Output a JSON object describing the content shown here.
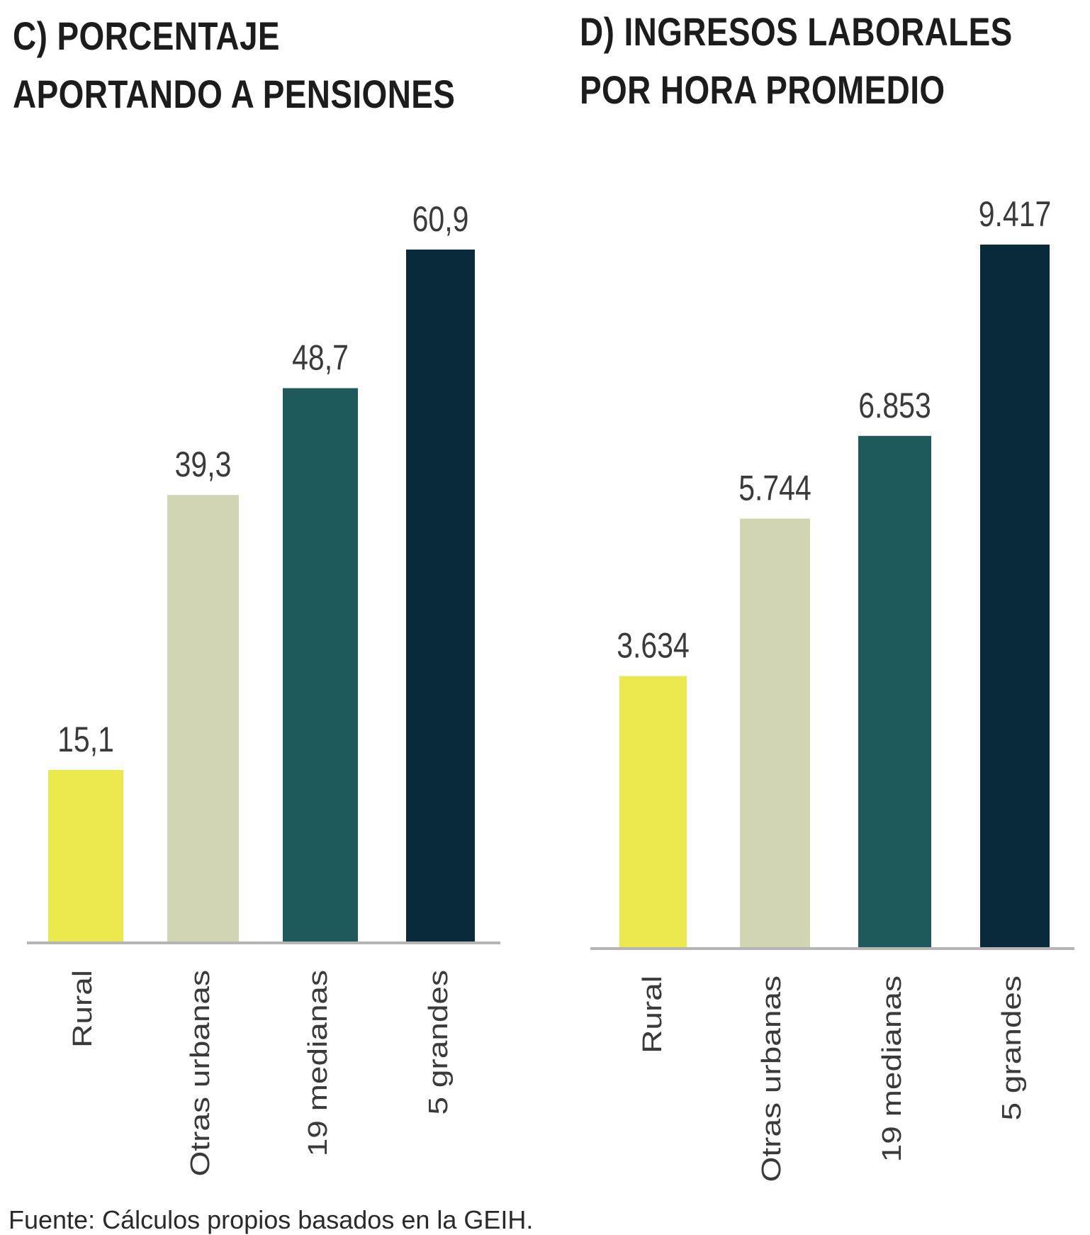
{
  "chart_data": [
    {
      "type": "bar",
      "title_lines": [
        "C) PORCENTAJE",
        "APORTANDO A PENSIONES"
      ],
      "categories": [
        "Rural",
        "Otras urbanas",
        "19 medianas",
        "5 grandes"
      ],
      "values": [
        15.1,
        39.3,
        48.7,
        60.9
      ],
      "value_labels": [
        "15,1",
        "39,3",
        "48,7",
        "60,9"
      ],
      "colors": [
        "#ece94f",
        "#d2d5b2",
        "#1e5a5b",
        "#082a3a"
      ],
      "ylim": [
        0,
        60.9
      ]
    },
    {
      "type": "bar",
      "title_lines": [
        "D) INGRESOS LABORALES",
        "POR HORA PROMEDIO"
      ],
      "categories": [
        "Rural",
        "Otras urbanas",
        "19 medianas",
        "5 grandes"
      ],
      "values": [
        3634,
        5744,
        6853,
        9417
      ],
      "value_labels": [
        "3.634",
        "5.744",
        "6.853",
        "9.417"
      ],
      "colors": [
        "#ece94f",
        "#d2d5b2",
        "#1e5a5b",
        "#082a3a"
      ],
      "ylim": [
        0,
        9417
      ]
    }
  ],
  "source": "Fuente: Cálculos propios basados en la GEIH."
}
